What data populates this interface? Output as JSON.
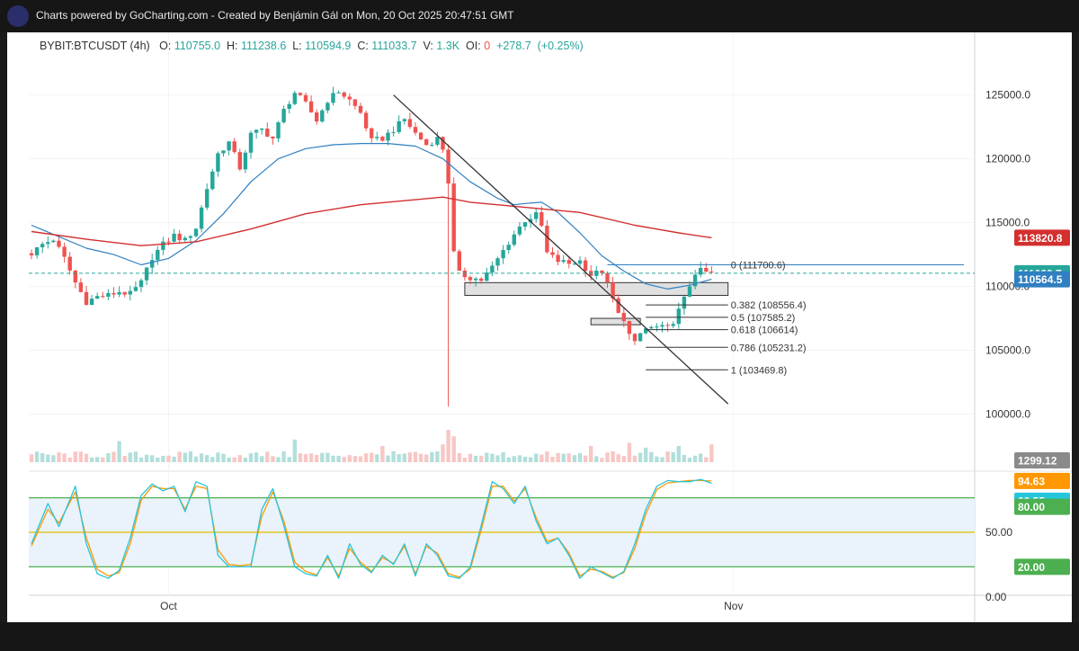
{
  "window": {
    "title": "Charts powered by GoCharting.com - Created by Benjámin Gál on Mon, 20 Oct 2025 20:47:51 GMT",
    "logo_icon": "chart-line-icon"
  },
  "header": {
    "symbol": "BYBIT:BTCUSDT (4h)",
    "o_label": "O:",
    "o": "110755.0",
    "h_label": "H:",
    "h": "111238.6",
    "l_label": "L:",
    "l": "110594.9",
    "c_label": "C:",
    "c": "111033.7",
    "v_label": "V:",
    "v": "1.3K",
    "oi_label": "OI:",
    "oi": "0",
    "change": "+278.7",
    "change_pct": "(+0.25%)"
  },
  "colors": {
    "up": "#26a69a",
    "down": "#ef5350",
    "ma_fast": "#2f7fc1",
    "ma_slow": "#d32f2f",
    "stoch_k": "#26c6da",
    "stoch_d": "#ff9800",
    "band_green": "#4caf50",
    "band_mid": "#e0c000"
  },
  "chart_data": [
    {
      "type": "candlestick",
      "series_name": "BYBIT:BTCUSDT (4h)",
      "ylim": [
        97500,
        128500
      ],
      "y_ticks": [
        100000,
        105000,
        110000,
        115000,
        120000,
        125000
      ],
      "y_tick_labels": [
        "100000.0",
        "105000.0",
        "110000.0",
        "115000.0",
        "120000.0",
        "125000.0"
      ],
      "x_labels": [
        {
          "label": "Oct",
          "t": 25
        },
        {
          "label": "Nov",
          "t": 128
        }
      ],
      "anchors": [
        [
          0,
          112600
        ],
        [
          2,
          113300
        ],
        [
          4,
          113700
        ],
        [
          6,
          112200
        ],
        [
          8,
          110300
        ],
        [
          10,
          108800
        ],
        [
          12,
          109200
        ],
        [
          14,
          109300
        ],
        [
          16,
          109600
        ],
        [
          18,
          109400
        ],
        [
          20,
          110300
        ],
        [
          22,
          112300
        ],
        [
          24,
          113300
        ],
        [
          26,
          114000
        ],
        [
          28,
          113600
        ],
        [
          30,
          114600
        ],
        [
          32,
          117700
        ],
        [
          34,
          120400
        ],
        [
          36,
          121300
        ],
        [
          38,
          119300
        ],
        [
          40,
          121900
        ],
        [
          42,
          122300
        ],
        [
          44,
          121600
        ],
        [
          46,
          123800
        ],
        [
          48,
          125200
        ],
        [
          50,
          124300
        ],
        [
          52,
          123000
        ],
        [
          54,
          124600
        ],
        [
          56,
          125300
        ],
        [
          58,
          124600
        ],
        [
          60,
          123600
        ],
        [
          62,
          121400
        ],
        [
          64,
          121600
        ],
        [
          66,
          122300
        ],
        [
          68,
          123100
        ],
        [
          70,
          122000
        ],
        [
          72,
          121100
        ],
        [
          74,
          121600
        ],
        [
          75,
          120800
        ],
        [
          76,
          118200
        ],
        [
          77,
          112600
        ],
        [
          78,
          111000
        ],
        [
          80,
          110700
        ],
        [
          82,
          110500
        ],
        [
          84,
          111500
        ],
        [
          86,
          112800
        ],
        [
          88,
          114100
        ],
        [
          90,
          115200
        ],
        [
          92,
          115600
        ],
        [
          93,
          114700
        ],
        [
          94,
          112600
        ],
        [
          96,
          112000
        ],
        [
          98,
          111800
        ],
        [
          100,
          112000
        ],
        [
          102,
          110900
        ],
        [
          104,
          111200
        ],
        [
          106,
          109000
        ],
        [
          107,
          107800
        ],
        [
          108,
          107500
        ],
        [
          109,
          106200
        ],
        [
          110,
          105500
        ],
        [
          111,
          106300
        ],
        [
          112,
          106700
        ],
        [
          114,
          106800
        ],
        [
          116,
          106700
        ],
        [
          117,
          107300
        ],
        [
          118,
          108100
        ],
        [
          119,
          109000
        ],
        [
          120,
          110100
        ],
        [
          121,
          111100
        ],
        [
          122,
          111200
        ],
        [
          124,
          111033
        ]
      ],
      "ma_fast_name": "MA (fast)",
      "ma_fast": [
        [
          0,
          114800
        ],
        [
          5,
          113900
        ],
        [
          10,
          113000
        ],
        [
          15,
          112500
        ],
        [
          20,
          111700
        ],
        [
          25,
          112200
        ],
        [
          30,
          113600
        ],
        [
          35,
          115700
        ],
        [
          40,
          118200
        ],
        [
          45,
          120000
        ],
        [
          50,
          120800
        ],
        [
          55,
          121100
        ],
        [
          60,
          121200
        ],
        [
          65,
          121200
        ],
        [
          70,
          121000
        ],
        [
          75,
          120000
        ],
        [
          80,
          118200
        ],
        [
          85,
          116900
        ],
        [
          88,
          116400
        ],
        [
          90,
          116500
        ],
        [
          93,
          116600
        ],
        [
          96,
          115800
        ],
        [
          100,
          114200
        ],
        [
          104,
          112400
        ],
        [
          108,
          111200
        ],
        [
          112,
          110200
        ],
        [
          116,
          109800
        ],
        [
          120,
          110100
        ],
        [
          124,
          110564
        ]
      ],
      "ma_slow_name": "MA (slow)",
      "ma_slow": [
        [
          0,
          114300
        ],
        [
          10,
          113700
        ],
        [
          20,
          113200
        ],
        [
          30,
          113500
        ],
        [
          40,
          114500
        ],
        [
          50,
          115700
        ],
        [
          60,
          116400
        ],
        [
          70,
          116800
        ],
        [
          75,
          117000
        ],
        [
          80,
          116600
        ],
        [
          90,
          116200
        ],
        [
          100,
          115800
        ],
        [
          110,
          114800
        ],
        [
          118,
          114200
        ],
        [
          124,
          113820
        ]
      ],
      "price_badges": [
        {
          "label": "113820.8",
          "value": 113820.8,
          "color": "#d32f2f"
        },
        {
          "label": "111033.7",
          "value": 111033.7,
          "color": "#26a69a"
        },
        {
          "label": "110564.5",
          "value": 110564.5,
          "color": "#2f7fc1"
        }
      ],
      "last_price": 111033.7,
      "wick_spike": {
        "t": 76,
        "low": 100600
      },
      "trendline": {
        "start": {
          "t": 66,
          "price": 125000
        },
        "end": {
          "t": 127,
          "price": 100800
        }
      },
      "fibonacci": {
        "t_start": 112,
        "t_end": 127,
        "label_t": 127.5,
        "levels": [
          {
            "label": "0 (111700.6)",
            "value": 111700.6,
            "t_start": 105,
            "t_end": 170
          },
          {
            "label": "0.382 (108556.4)",
            "value": 108556.4
          },
          {
            "label": "0.5 (107585.2)",
            "value": 107585.2
          },
          {
            "label": "0.618 (106614)",
            "value": 106614
          },
          {
            "label": "0.786 (105231.2)",
            "value": 105231.2
          },
          {
            "label": "1 (103469.8)",
            "value": 103469.8
          }
        ]
      },
      "zones": [
        {
          "t_start": 79,
          "t_end": 127,
          "low": 109300,
          "high": 110300
        },
        {
          "t_start": 102,
          "t_end": 111,
          "low": 107000,
          "high": 107500
        }
      ]
    },
    {
      "type": "bar",
      "series_name": "Volume",
      "last_value_label": "1299.12",
      "spikes": [
        [
          76,
          1.0
        ],
        [
          77,
          0.8
        ],
        [
          75,
          0.55
        ],
        [
          16,
          0.65
        ],
        [
          48,
          0.7
        ],
        [
          64,
          0.5
        ],
        [
          102,
          0.5
        ],
        [
          109,
          0.6
        ],
        [
          112,
          0.45
        ],
        [
          118,
          0.5
        ],
        [
          124,
          0.55
        ]
      ]
    },
    {
      "type": "line",
      "series_name": "Stochastic",
      "ylim": [
        0,
        100
      ],
      "y_tick_labels": [
        {
          "label": "0.00",
          "value": 0
        },
        {
          "label": "50.00",
          "value": 50
        }
      ],
      "bands": {
        "upper": 80,
        "middle": 50,
        "lower": 20
      },
      "value_badges": [
        {
          "label": "94.63",
          "value": 94.63,
          "color": "#ff9800"
        },
        {
          "label": "92.55",
          "value": 92.55,
          "color": "#26c6da"
        },
        {
          "label": "80.00",
          "value": 80,
          "color": "#4caf50"
        },
        {
          "label": "20.00",
          "value": 20,
          "color": "#4caf50"
        }
      ],
      "k_anchors": [
        [
          0,
          40
        ],
        [
          3,
          75
        ],
        [
          5,
          55
        ],
        [
          8,
          90
        ],
        [
          10,
          40
        ],
        [
          12,
          14
        ],
        [
          14,
          10
        ],
        [
          16,
          17
        ],
        [
          18,
          45
        ],
        [
          20,
          82
        ],
        [
          22,
          92
        ],
        [
          24,
          86
        ],
        [
          26,
          90
        ],
        [
          28,
          68
        ],
        [
          30,
          94
        ],
        [
          32,
          90
        ],
        [
          34,
          30
        ],
        [
          36,
          20
        ],
        [
          38,
          20
        ],
        [
          40,
          20
        ],
        [
          42,
          70
        ],
        [
          44,
          88
        ],
        [
          46,
          56
        ],
        [
          48,
          20
        ],
        [
          50,
          14
        ],
        [
          52,
          12
        ],
        [
          54,
          30
        ],
        [
          56,
          10
        ],
        [
          58,
          40
        ],
        [
          60,
          22
        ],
        [
          62,
          15
        ],
        [
          64,
          30
        ],
        [
          66,
          22
        ],
        [
          68,
          40
        ],
        [
          70,
          12
        ],
        [
          72,
          40
        ],
        [
          74,
          30
        ],
        [
          76,
          12
        ],
        [
          78,
          10
        ],
        [
          80,
          20
        ],
        [
          82,
          56
        ],
        [
          84,
          94
        ],
        [
          86,
          88
        ],
        [
          88,
          75
        ],
        [
          90,
          90
        ],
        [
          92,
          60
        ],
        [
          94,
          40
        ],
        [
          96,
          45
        ],
        [
          98,
          30
        ],
        [
          100,
          10
        ],
        [
          102,
          20
        ],
        [
          104,
          15
        ],
        [
          106,
          10
        ],
        [
          108,
          16
        ],
        [
          110,
          40
        ],
        [
          112,
          70
        ],
        [
          114,
          90
        ],
        [
          116,
          95
        ],
        [
          118,
          94
        ],
        [
          120,
          94
        ],
        [
          122,
          96
        ],
        [
          124,
          92.55
        ]
      ],
      "d_anchors": [
        [
          0,
          38
        ],
        [
          3,
          70
        ],
        [
          5,
          58
        ],
        [
          8,
          85
        ],
        [
          10,
          45
        ],
        [
          12,
          18
        ],
        [
          14,
          12
        ],
        [
          16,
          15
        ],
        [
          18,
          40
        ],
        [
          20,
          78
        ],
        [
          22,
          90
        ],
        [
          24,
          88
        ],
        [
          26,
          88
        ],
        [
          28,
          70
        ],
        [
          30,
          90
        ],
        [
          32,
          88
        ],
        [
          34,
          35
        ],
        [
          36,
          22
        ],
        [
          38,
          21
        ],
        [
          40,
          22
        ],
        [
          42,
          64
        ],
        [
          44,
          85
        ],
        [
          46,
          60
        ],
        [
          48,
          24
        ],
        [
          50,
          16
        ],
        [
          52,
          13
        ],
        [
          54,
          28
        ],
        [
          56,
          12
        ],
        [
          58,
          36
        ],
        [
          60,
          24
        ],
        [
          62,
          16
        ],
        [
          64,
          28
        ],
        [
          66,
          23
        ],
        [
          68,
          38
        ],
        [
          70,
          14
        ],
        [
          72,
          38
        ],
        [
          74,
          32
        ],
        [
          76,
          14
        ],
        [
          78,
          11
        ],
        [
          80,
          18
        ],
        [
          82,
          52
        ],
        [
          84,
          90
        ],
        [
          86,
          90
        ],
        [
          88,
          77
        ],
        [
          90,
          88
        ],
        [
          92,
          63
        ],
        [
          94,
          42
        ],
        [
          96,
          45
        ],
        [
          98,
          32
        ],
        [
          100,
          12
        ],
        [
          102,
          18
        ],
        [
          104,
          16
        ],
        [
          106,
          11
        ],
        [
          108,
          15
        ],
        [
          110,
          36
        ],
        [
          112,
          66
        ],
        [
          114,
          87
        ],
        [
          116,
          93
        ],
        [
          118,
          94
        ],
        [
          120,
          95
        ],
        [
          122,
          95
        ],
        [
          124,
          94.63
        ]
      ]
    }
  ]
}
